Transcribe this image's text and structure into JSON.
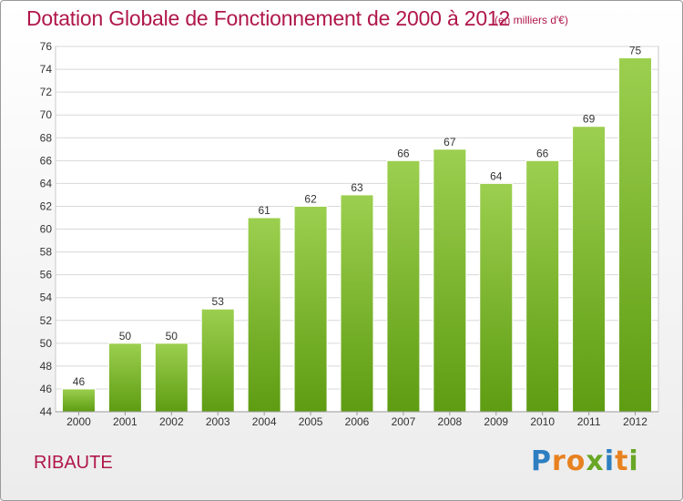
{
  "chart_data": {
    "type": "bar",
    "title": "Dotation Globale de Fonctionnement de 2000 à 2012",
    "subtitle": "(en milliers d'€)",
    "categories": [
      "2000",
      "2001",
      "2002",
      "2003",
      "2004",
      "2005",
      "2006",
      "2007",
      "2008",
      "2009",
      "2010",
      "2011",
      "2012"
    ],
    "values": [
      46,
      50,
      50,
      53,
      61,
      62,
      63,
      66,
      67,
      64,
      66,
      69,
      75
    ],
    "ylim": [
      44,
      76
    ],
    "yticks": [
      44,
      46,
      48,
      50,
      52,
      54,
      56,
      58,
      60,
      62,
      64,
      66,
      68,
      70,
      72,
      74,
      76
    ],
    "grid": true,
    "bar_color_top": "#9ccf4f",
    "bar_color_bottom": "#5e9c12"
  },
  "commune": "RIBAUTE",
  "logo": {
    "letters": [
      "P",
      "r",
      "o",
      "x",
      "i",
      "t",
      "i"
    ]
  }
}
